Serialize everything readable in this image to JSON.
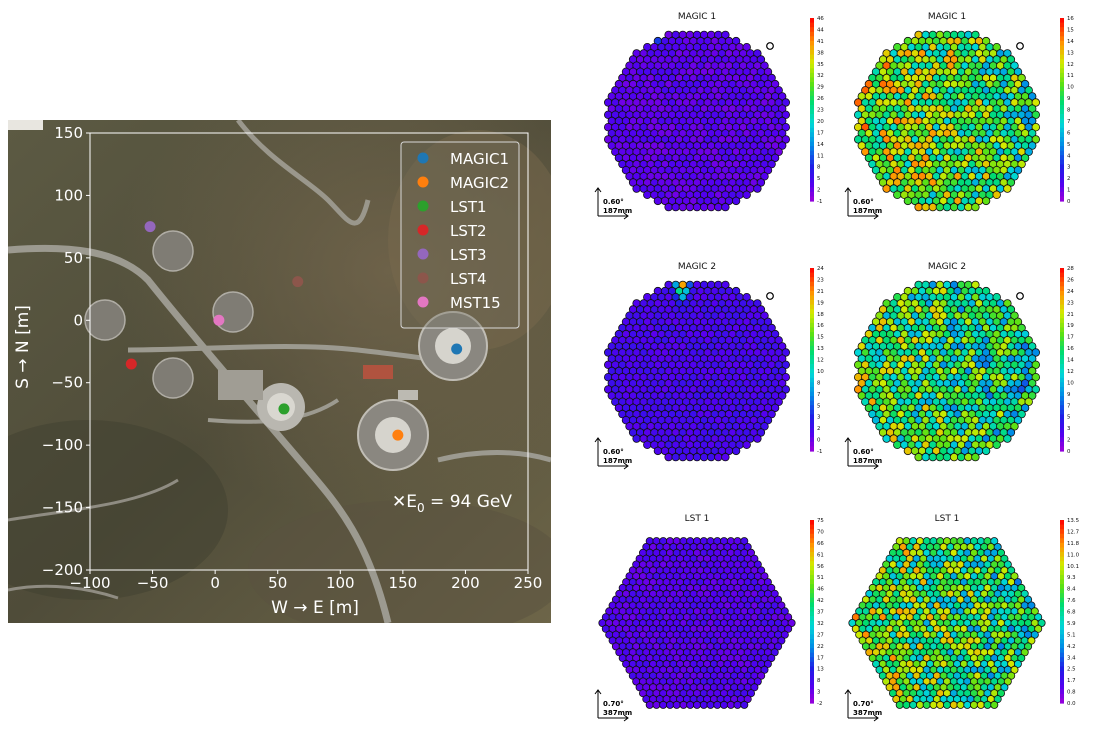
{
  "map": {
    "chart_data": {
      "type": "scatter",
      "xlabel": "W → E [m]",
      "ylabel": "S → N [m]",
      "xlim": [
        -100,
        250
      ],
      "ylim": [
        -200,
        150
      ],
      "xticks": [
        "−100",
        "−50",
        "0",
        "50",
        "100",
        "150",
        "200",
        "250"
      ],
      "yticks": [
        "150",
        "100",
        "50",
        "0",
        "−50",
        "−100",
        "−150",
        "−200"
      ],
      "grid": false,
      "legend_position": "top-right",
      "series": [
        {
          "name": "MAGIC1",
          "color": "#1f77b4",
          "x": 193,
          "y": -23
        },
        {
          "name": "MAGIC2",
          "color": "#ff7f0e",
          "x": 146,
          "y": -92
        },
        {
          "name": "LST1",
          "color": "#2ca02c",
          "x": 55,
          "y": -71
        },
        {
          "name": "LST2",
          "color": "#d62728",
          "x": -67,
          "y": -35
        },
        {
          "name": "LST3",
          "color": "#9467bd",
          "x": -52,
          "y": 75
        },
        {
          "name": "LST4",
          "color": "#8c564b",
          "x": 66,
          "y": 31
        },
        {
          "name": "MST15",
          "color": "#e377c2",
          "x": 3,
          "y": 0
        }
      ],
      "annotation": {
        "marker": "✕",
        "label": "E",
        "subscript": "0",
        "text": " = 94 GeV"
      }
    }
  },
  "cameras": [
    {
      "title": "MAGIC 1",
      "shape": "circle",
      "scale_angle": "0.60°",
      "scale_mm": "187mm",
      "colorbar_ticks": [
        "46",
        "44",
        "41",
        "38",
        "35",
        "32",
        "29",
        "26",
        "23",
        "20",
        "17",
        "14",
        "11",
        "8",
        "5",
        "2",
        "-1"
      ],
      "colorbar_range": [
        -1,
        46
      ],
      "background_level": 0.04,
      "hotspot": {
        "peak": 1.0,
        "orientation_deg": 75,
        "shape": "ellipse"
      }
    },
    {
      "title": "MAGIC 1",
      "shape": "circle",
      "scale_angle": "0.60°",
      "scale_mm": "187mm",
      "colorbar_ticks": [
        "16",
        "15",
        "14",
        "13",
        "12",
        "11",
        "10",
        "9",
        "8",
        "7",
        "6",
        "5",
        "4",
        "3",
        "2",
        "1",
        "0"
      ],
      "colorbar_range": [
        0,
        16
      ],
      "background_level": 0.62,
      "hotspot": null
    },
    {
      "title": "MAGIC 2",
      "shape": "circle",
      "scale_angle": "0.60°",
      "scale_mm": "187mm",
      "colorbar_ticks": [
        "24",
        "23",
        "21",
        "19",
        "18",
        "16",
        "15",
        "13",
        "12",
        "10",
        "8",
        "7",
        "5",
        "3",
        "2",
        "0",
        "-1"
      ],
      "colorbar_range": [
        -1,
        24
      ],
      "background_level": 0.07,
      "hotspot": {
        "peak": 0.9,
        "orientation_deg": 90,
        "shape": "ellipse"
      }
    },
    {
      "title": "MAGIC 2",
      "shape": "circle",
      "scale_angle": "0.60°",
      "scale_mm": "187mm",
      "colorbar_ticks": [
        "28",
        "26",
        "24",
        "23",
        "21",
        "19",
        "17",
        "16",
        "14",
        "12",
        "10",
        "9",
        "7",
        "5",
        "3",
        "2",
        "0"
      ],
      "colorbar_range": [
        0,
        28
      ],
      "background_level": 0.55,
      "hotspot": null
    },
    {
      "title": "LST 1",
      "shape": "hexagon",
      "scale_angle": "0.70°",
      "scale_mm": "387mm",
      "colorbar_ticks": [
        "75",
        "70",
        "66",
        "61",
        "56",
        "51",
        "46",
        "42",
        "37",
        "32",
        "27",
        "22",
        "17",
        "13",
        "8",
        "3",
        "-2"
      ],
      "colorbar_range": [
        -2,
        75
      ],
      "background_level": 0.05,
      "hotspot": {
        "peak": 0.85,
        "orientation_deg": 35,
        "shape": "ellipse"
      }
    },
    {
      "title": "LST 1",
      "shape": "hexagon",
      "scale_angle": "0.70°",
      "scale_mm": "387mm",
      "colorbar_ticks": [
        "13.5",
        "12.7",
        "11.8",
        "11.0",
        "10.1",
        "9.3",
        "8.4",
        "7.6",
        "6.8",
        "5.9",
        "5.1",
        "4.2",
        "3.4",
        "2.5",
        "1.7",
        "0.8",
        "0.0"
      ],
      "colorbar_range": [
        0,
        13.5
      ],
      "background_level": 0.58,
      "hotspot": null
    }
  ]
}
